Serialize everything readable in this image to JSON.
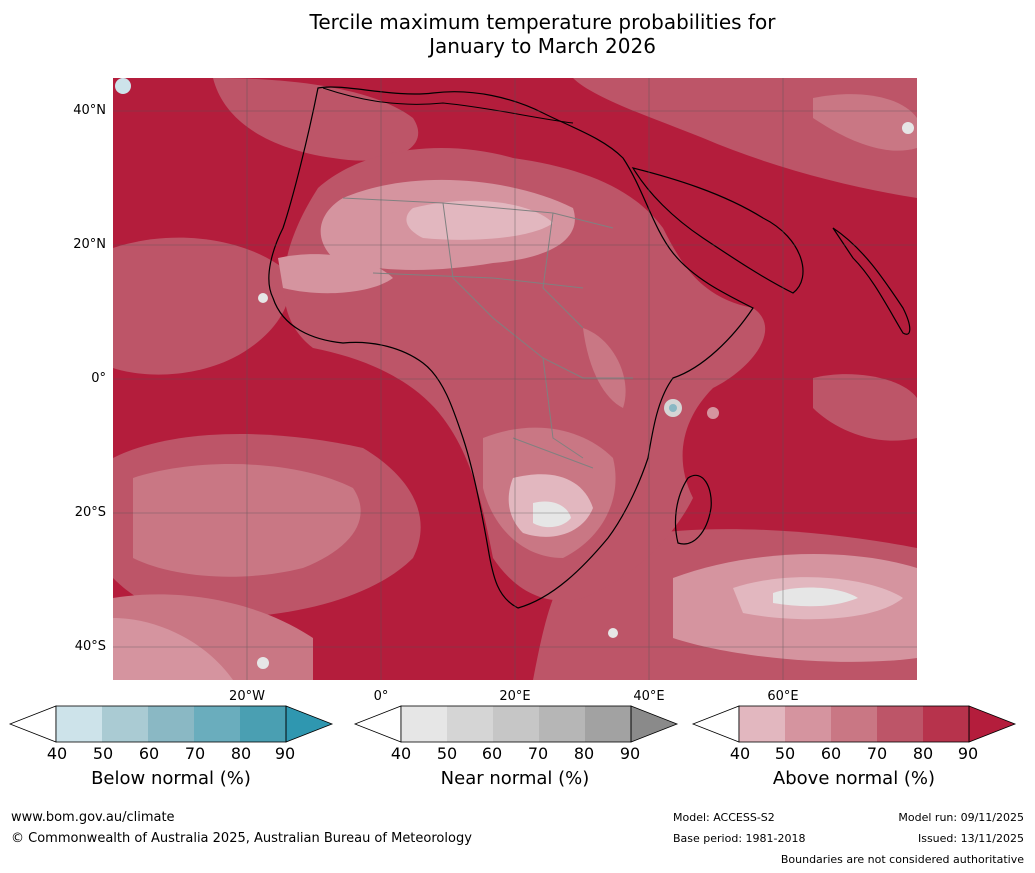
{
  "title_line1": "Tercile maximum temperature probabilities for",
  "title_line2": "January to March 2026",
  "map": {
    "lat_labels": [
      "40°N",
      "20°N",
      "0°",
      "20°S",
      "40°S"
    ],
    "lon_labels": [
      "20°W",
      "0°",
      "20°E",
      "40°E",
      "60°E"
    ]
  },
  "colorbars": [
    {
      "title": "Below normal (%)",
      "ticks": [
        "40",
        "50",
        "60",
        "70",
        "80",
        "90"
      ],
      "colors": [
        "#ffffff",
        "#cde3ea",
        "#aacbd3",
        "#8ab8c4",
        "#6aadbd",
        "#4a9fb2",
        "#2f97b0"
      ]
    },
    {
      "title": "Near normal (%)",
      "ticks": [
        "40",
        "50",
        "60",
        "70",
        "80",
        "90"
      ],
      "colors": [
        "#ffffff",
        "#e6e6e6",
        "#d5d5d5",
        "#c6c6c6",
        "#b6b6b6",
        "#a2a2a2",
        "#8a8a8a"
      ]
    },
    {
      "title": "Above normal (%)",
      "ticks": [
        "40",
        "50",
        "60",
        "70",
        "80",
        "90"
      ],
      "colors": [
        "#ffffff",
        "#e2b7bf",
        "#d5949f",
        "#c97784",
        "#bd5568",
        "#b7334c",
        "#b41d3c"
      ]
    }
  ],
  "footer": {
    "website": "www.bom.gov.au/climate",
    "copyright": "© Commonwealth of Australia 2025, Australian Bureau of Meteorology",
    "model": "Model: ACCESS-S2",
    "base_period": "Base period: 1981-2018",
    "model_run": "Model run: 09/11/2025",
    "issued": "Issued: 13/11/2025",
    "disclaimer": "Boundaries are not considered authoritative"
  }
}
